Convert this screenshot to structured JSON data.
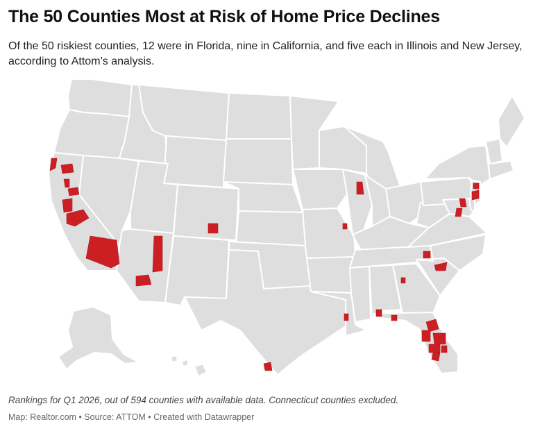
{
  "title": "The 50 Counties Most at Risk of Home Price Declines",
  "subtitle": "Of the 50 riskiest counties, 12 were in Florida, nine in California, and five each in Illinois and New Jersey, according to Attom’s analysis.",
  "notes": "Rankings for Q1 2026, out of 594 counties with available data. Connecticut counties excluded.",
  "footer": {
    "map_credit": "Map: Realtor.com",
    "source": "Source: ATTOM",
    "created_with": "Created with Datawrapper",
    "separator": " • "
  },
  "colors": {
    "state_fill": "#dedede",
    "state_border": "#ffffff",
    "highlighted_county": "#cc1f24"
  }
}
